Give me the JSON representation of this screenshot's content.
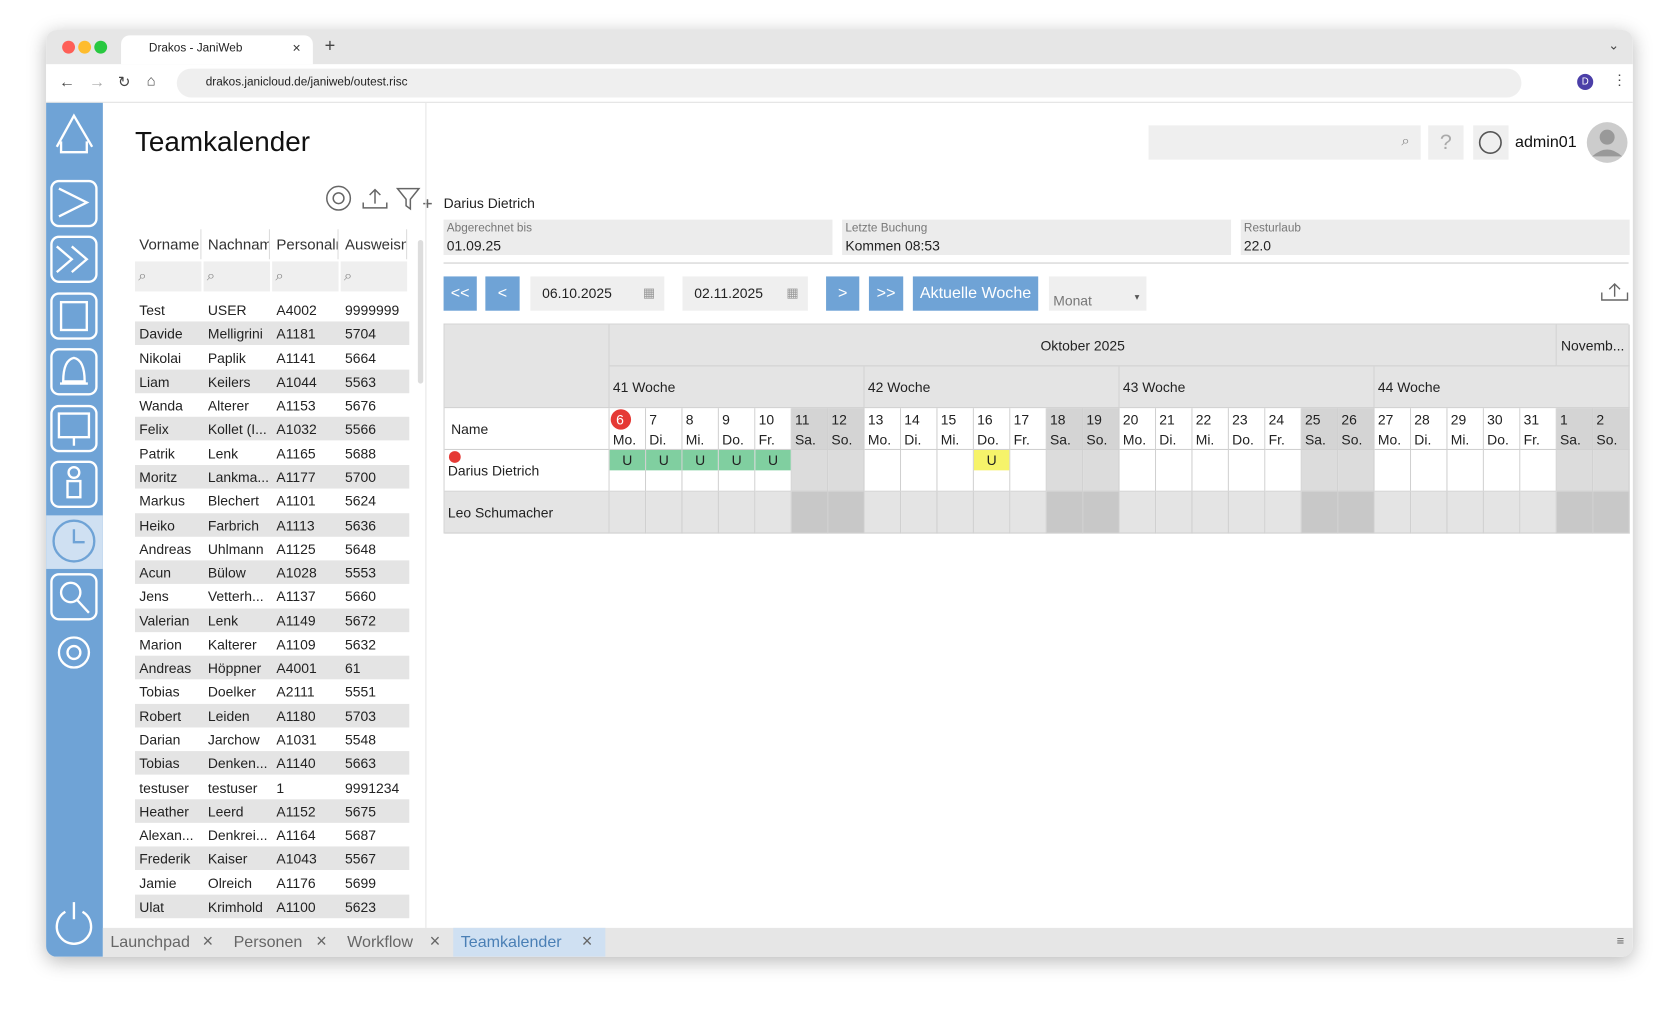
{
  "browser": {
    "tab_title": "Drakos - JaniWeb",
    "url": "drakos.janicloud.de/janiweb/outest.risc",
    "profile": "D"
  },
  "header": {
    "title": "Teamkalender",
    "user": "admin01"
  },
  "people_table": {
    "columns": [
      "Vorname",
      "Nachname",
      "Personaln",
      "Ausweisnu"
    ],
    "rows": [
      [
        "Test",
        "USER",
        "A4002",
        "9999999"
      ],
      [
        "Davide",
        "Melligrini",
        "A1181",
        "5704"
      ],
      [
        "Nikolai",
        "Paplik",
        "A1141",
        "5664"
      ],
      [
        "Liam",
        "Keilers",
        "A1044",
        "5563"
      ],
      [
        "Wanda",
        "Alterer",
        "A1153",
        "5676"
      ],
      [
        "Felix",
        "Kollet (I...",
        "A1032",
        "5566"
      ],
      [
        "Patrik",
        "Lenk",
        "A1165",
        "5688"
      ],
      [
        "Moritz",
        "Lankma...",
        "A1177",
        "5700"
      ],
      [
        "Markus",
        "Blechert",
        "A1101",
        "5624"
      ],
      [
        "Heiko",
        "Farbrich",
        "A1113",
        "5636"
      ],
      [
        "Andreas",
        "Uhlmann",
        "A1125",
        "5648"
      ],
      [
        "Acun",
        "Bülow",
        "A1028",
        "5553"
      ],
      [
        "Jens",
        "Vetterh...",
        "A1137",
        "5660"
      ],
      [
        "Valerian",
        "Lenk",
        "A1149",
        "5672"
      ],
      [
        "Marion",
        "Kalterer",
        "A1109",
        "5632"
      ],
      [
        "Andreas",
        "Höppner",
        "A4001",
        "61"
      ],
      [
        "Tobias",
        "Doelker",
        "A2111",
        "5551"
      ],
      [
        "Robert",
        "Leiden",
        "A1180",
        "5703"
      ],
      [
        "Darian",
        "Jarchow",
        "A1031",
        "5548"
      ],
      [
        "Tobias",
        "Denken...",
        "A1140",
        "5663"
      ],
      [
        "testuser",
        "testuser",
        "1",
        "9991234"
      ],
      [
        "Heather",
        "Leerd",
        "A1152",
        "5675"
      ],
      [
        "Alexan...",
        "Denkrei...",
        "A1164",
        "5687"
      ],
      [
        "Frederik",
        "Kaiser",
        "A1043",
        "5567"
      ],
      [
        "Jamie",
        "Olreich",
        "A1176",
        "5699"
      ],
      [
        "Ulat",
        "Krimhold",
        "A1100",
        "5623"
      ]
    ]
  },
  "detail": {
    "name": "Darius Dietrich",
    "fields": [
      {
        "label": "Abgerechnet bis",
        "value": "01.09.25"
      },
      {
        "label": "Letzte Buchung",
        "value": "Kommen 08:53"
      },
      {
        "label": "Resturlaub",
        "value": "22.0"
      }
    ]
  },
  "navigation": {
    "buttons": [
      "<<",
      "<",
      ">",
      ">>"
    ],
    "from": "06.10.2025",
    "to": "02.11.2025",
    "today_button": "Aktuelle Woche",
    "view": "Monat"
  },
  "calendar": {
    "name_header": "Name",
    "months": [
      {
        "label": "Oktober 2025",
        "days": 26
      },
      {
        "label": "Novemb...",
        "days": 2
      }
    ],
    "weeks": [
      "41 Woche",
      "42 Woche",
      "43 Woche",
      "44 Woche"
    ],
    "days": [
      {
        "num": "6",
        "wd": "Mo.",
        "today": true
      },
      {
        "num": "7",
        "wd": "Di."
      },
      {
        "num": "8",
        "wd": "Mi."
      },
      {
        "num": "9",
        "wd": "Do."
      },
      {
        "num": "10",
        "wd": "Fr."
      },
      {
        "num": "11",
        "wd": "Sa.",
        "weekend": true
      },
      {
        "num": "12",
        "wd": "So.",
        "weekend": true
      },
      {
        "num": "13",
        "wd": "Mo."
      },
      {
        "num": "14",
        "wd": "Di."
      },
      {
        "num": "15",
        "wd": "Mi."
      },
      {
        "num": "16",
        "wd": "Do."
      },
      {
        "num": "17",
        "wd": "Fr."
      },
      {
        "num": "18",
        "wd": "Sa.",
        "weekend": true
      },
      {
        "num": "19",
        "wd": "So.",
        "weekend": true
      },
      {
        "num": "20",
        "wd": "Mo."
      },
      {
        "num": "21",
        "wd": "Di."
      },
      {
        "num": "22",
        "wd": "Mi."
      },
      {
        "num": "23",
        "wd": "Do."
      },
      {
        "num": "24",
        "wd": "Fr."
      },
      {
        "num": "25",
        "wd": "Sa.",
        "weekend": true
      },
      {
        "num": "26",
        "wd": "So.",
        "weekend": true
      },
      {
        "num": "27",
        "wd": "Mo."
      },
      {
        "num": "28",
        "wd": "Di."
      },
      {
        "num": "29",
        "wd": "Mi."
      },
      {
        "num": "30",
        "wd": "Do."
      },
      {
        "num": "31",
        "wd": "Fr."
      },
      {
        "num": "1",
        "wd": "Sa.",
        "weekend": true
      },
      {
        "num": "2",
        "wd": "So.",
        "weekend": true
      }
    ],
    "rows": [
      {
        "name": "Darius Dietrich",
        "marker_color": "#e53935",
        "cells": [
          "U",
          "U",
          "U",
          "U",
          "U",
          null,
          null,
          null,
          null,
          null,
          "U",
          null,
          null,
          null,
          null,
          null,
          null,
          null,
          null,
          null,
          null,
          null,
          null,
          null,
          null,
          null,
          null,
          null
        ],
        "cell_colors": [
          "#80cfa0",
          "#80cfa0",
          "#80cfa0",
          "#80cfa0",
          "#80cfa0",
          null,
          null,
          null,
          null,
          null,
          "#f6f36a",
          null,
          null,
          null,
          null,
          null,
          null,
          null,
          null,
          null,
          null,
          null,
          null,
          null,
          null,
          null,
          null,
          null
        ]
      },
      {
        "name": "Leo Schumacher",
        "shaded": true
      }
    ]
  },
  "bottom_tabs": [
    {
      "label": "Launchpad"
    },
    {
      "label": "Personen"
    },
    {
      "label": "Workflow"
    },
    {
      "label": "Teamkalender",
      "active": true
    }
  ]
}
